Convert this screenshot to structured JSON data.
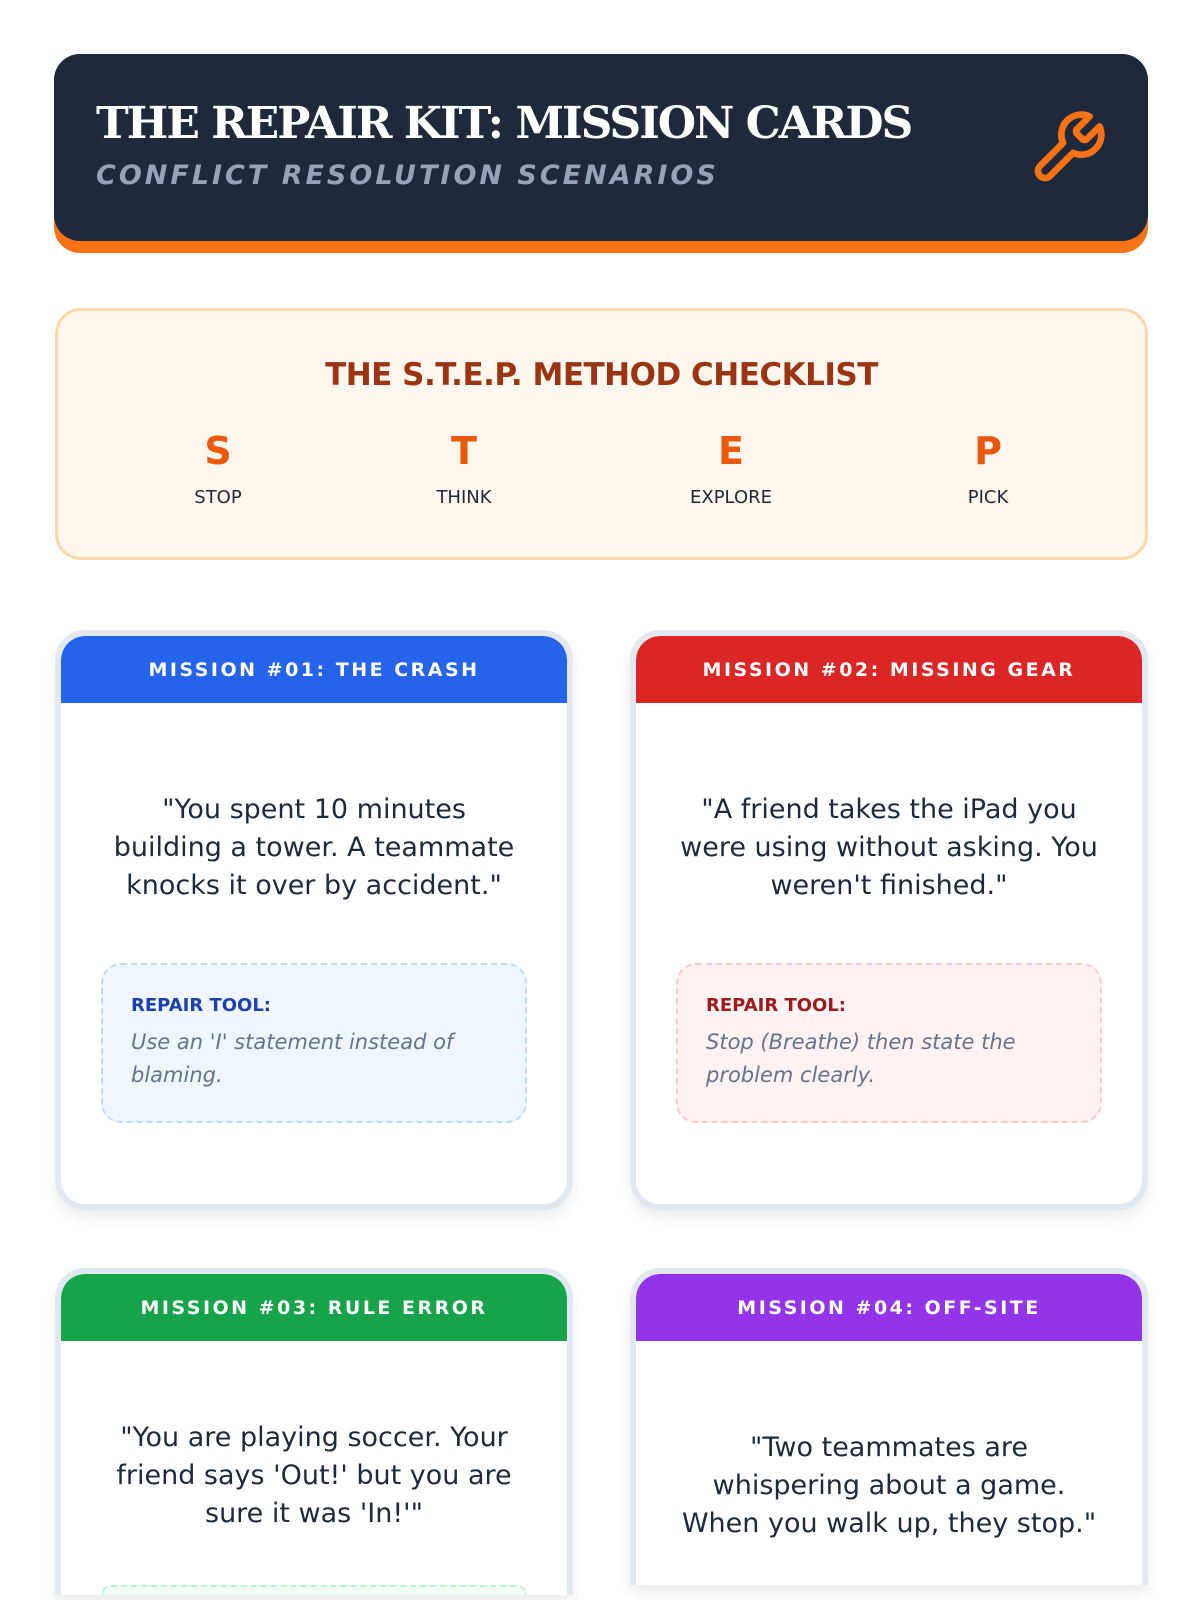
{
  "header": {
    "title": "THE REPAIR KIT: MISSION CARDS",
    "subtitle": "CONFLICT RESOLUTION SCENARIOS",
    "icon": "wrench-icon",
    "accent": "#f97316",
    "background": "#1e293b"
  },
  "checklist": {
    "title": "THE S.T.E.P. METHOD CHECKLIST",
    "steps": [
      {
        "letter": "S",
        "word": "STOP"
      },
      {
        "letter": "T",
        "word": "THINK"
      },
      {
        "letter": "E",
        "word": "EXPLORE"
      },
      {
        "letter": "P",
        "word": "PICK"
      }
    ]
  },
  "cards": [
    {
      "title": "MISSION #01: THE CRASH",
      "color": "#2563eb",
      "quote": "\"You spent 10 minutes building a tower. A teammate knocks it over by accident.\"",
      "tool_label": "REPAIR TOOL:",
      "tool_text": "Use an 'I' statement instead of blaming."
    },
    {
      "title": "MISSION #02: MISSING GEAR",
      "color": "#dc2626",
      "quote": "\"A friend takes the iPad you were using without asking. You weren't finished.\"",
      "tool_label": "REPAIR TOOL:",
      "tool_text": "Stop (Breathe) then state the problem clearly."
    },
    {
      "title": "MISSION #03: RULE ERROR",
      "color": "#16a34a",
      "quote": "\"You are playing soccer. Your friend says 'Out!' but you are sure it was 'In!'\""
    },
    {
      "title": "MISSION #04: OFF-SITE",
      "color": "#9333ea",
      "quote": "\"Two teammates are whispering about a game. When you walk up, they stop.\""
    }
  ]
}
